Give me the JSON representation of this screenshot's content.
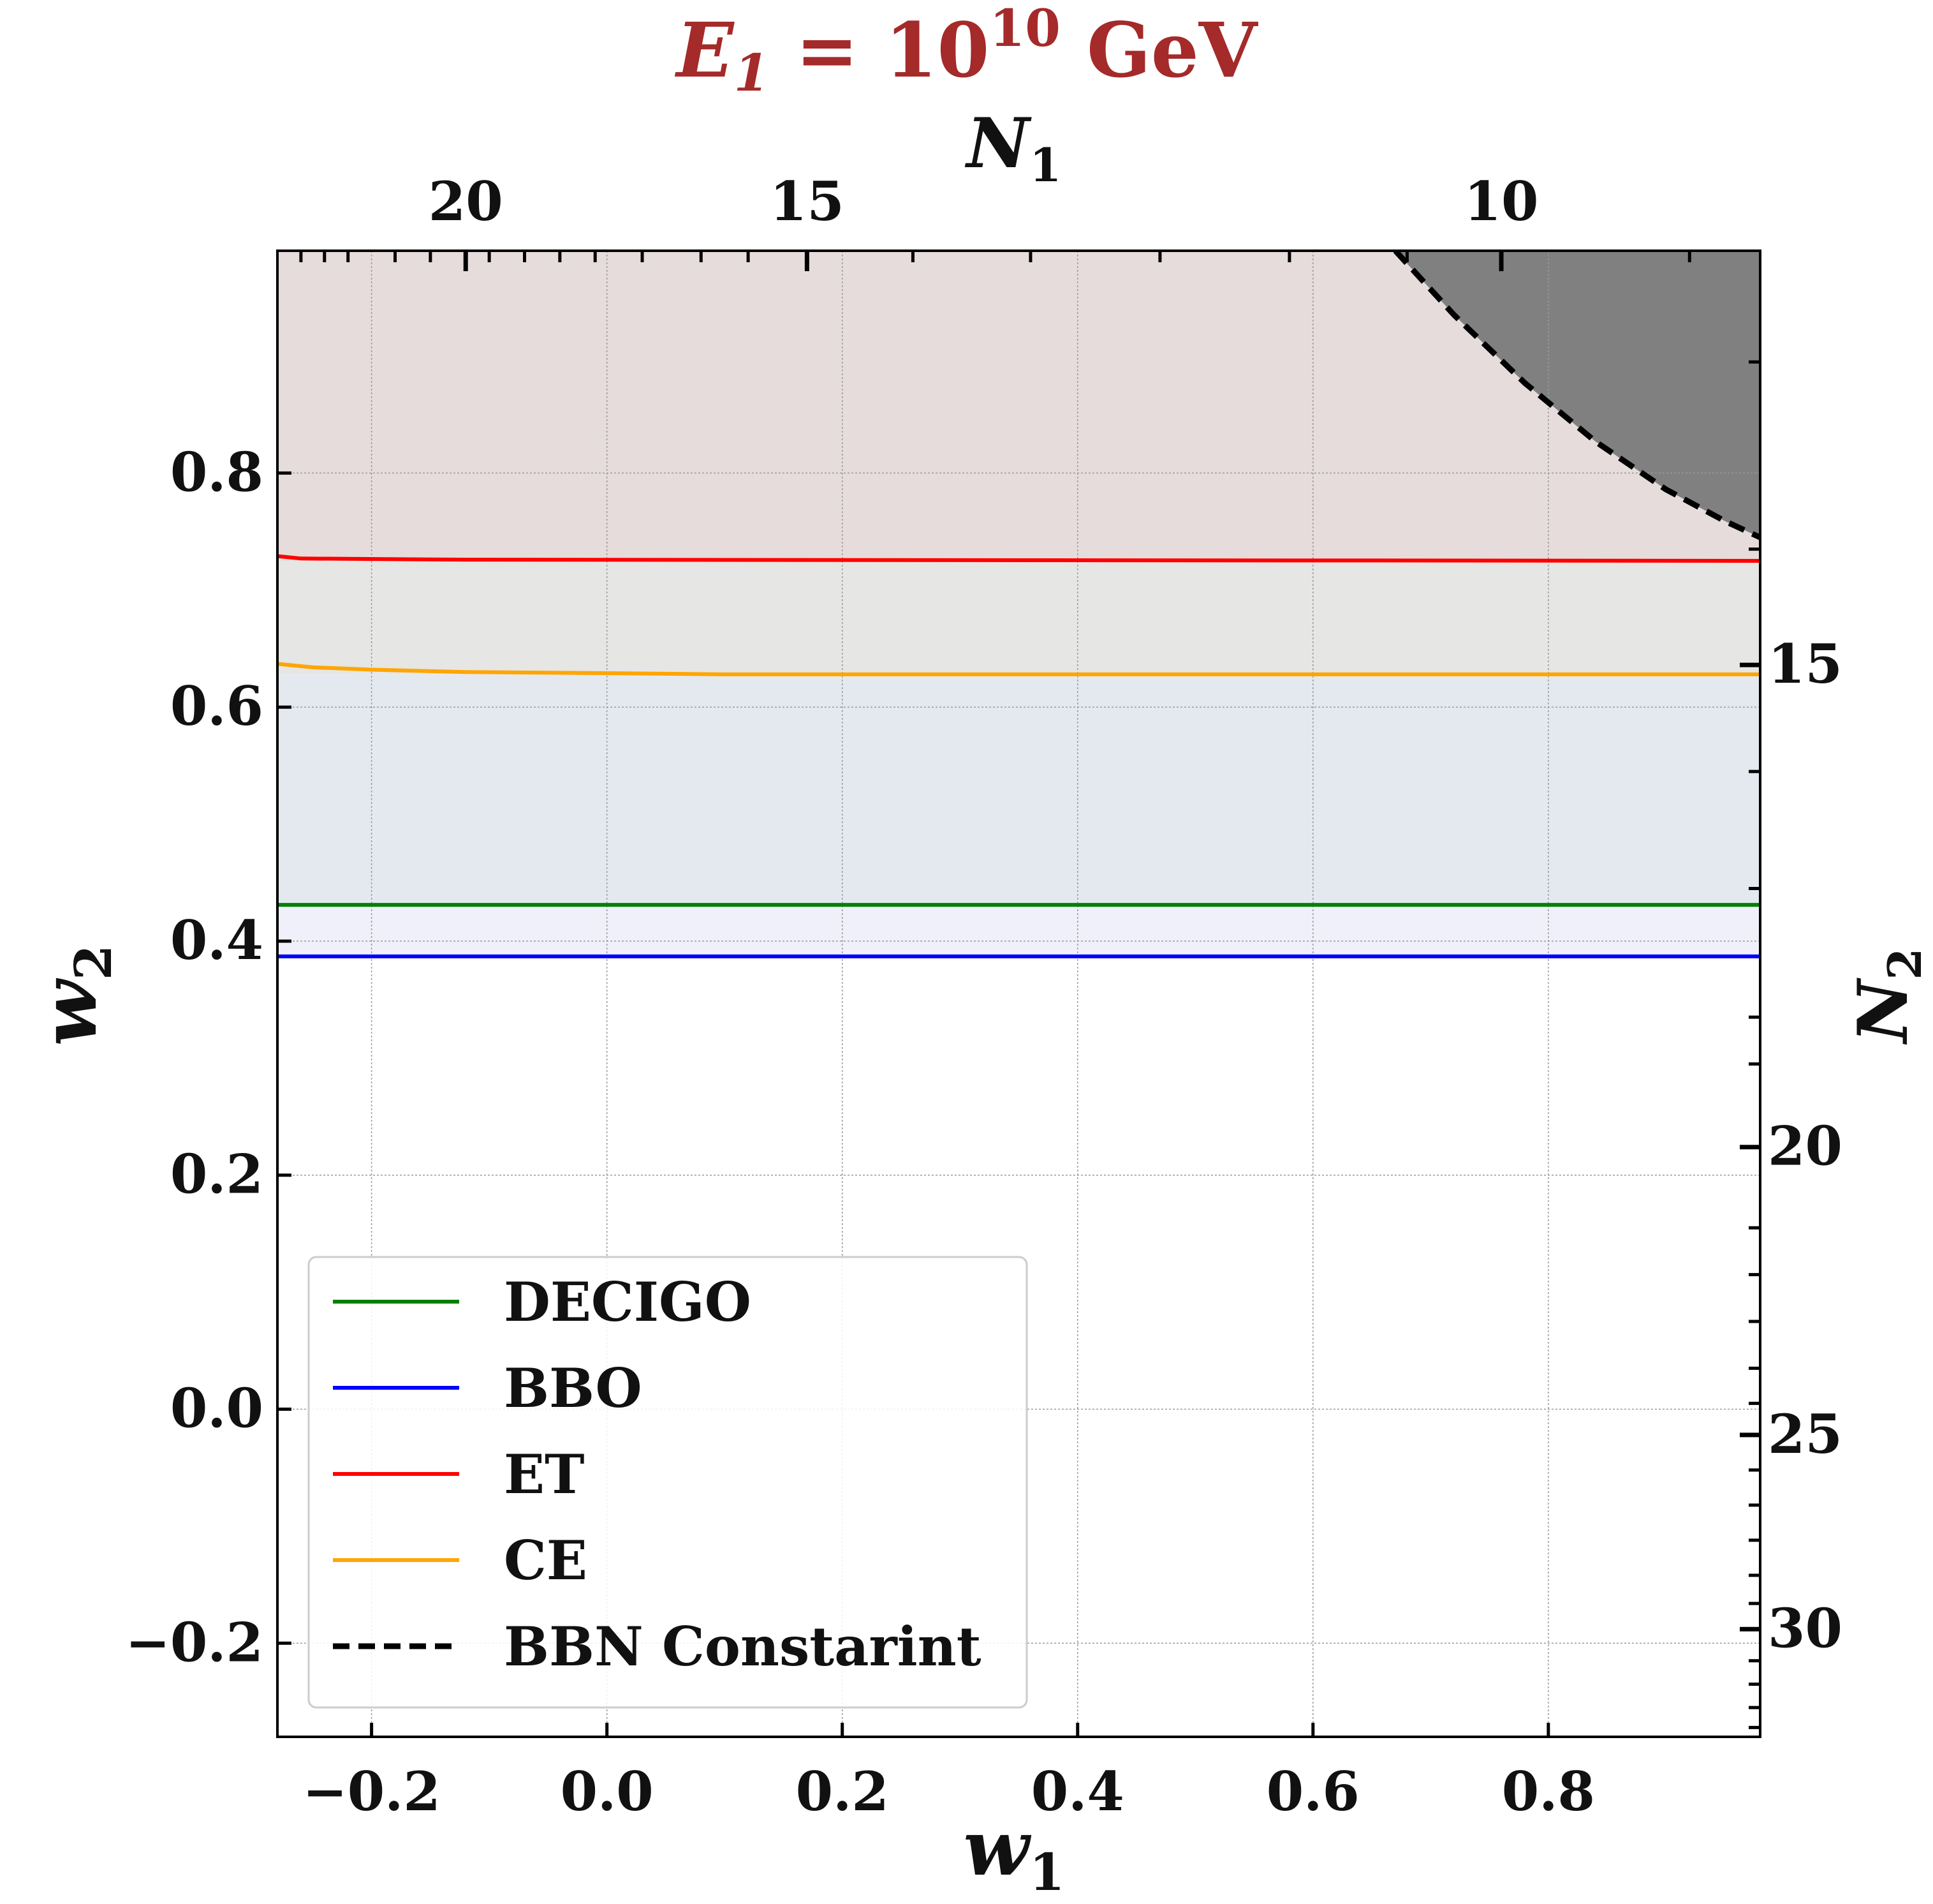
{
  "chart_data": {
    "type": "line",
    "title": {
      "main": "E",
      "sub": "1",
      "mid": " = 10",
      "sup": "10",
      "tail": " GeV"
    },
    "title_color": "#a52a2a",
    "xlabel": {
      "main": "w",
      "sub": "1"
    },
    "ylabel": {
      "main": "w",
      "sub": "2"
    },
    "top_label": {
      "main": "N",
      "sub": "1"
    },
    "right_label": {
      "main": "N",
      "sub": "2"
    },
    "xlim": [
      -0.28,
      0.98
    ],
    "ylim": [
      -0.28,
      0.99
    ],
    "x_ticks": [
      -0.2,
      0.0,
      0.2,
      0.4,
      0.6,
      0.8
    ],
    "x_tick_labels": [
      "−0.2",
      "0.0",
      "0.2",
      "0.4",
      "0.6",
      "0.8"
    ],
    "y_ticks": [
      -0.2,
      0.0,
      0.2,
      0.4,
      0.6,
      0.8
    ],
    "y_tick_labels": [
      "−0.2",
      "0.0",
      "0.2",
      "0.4",
      "0.6",
      "0.8"
    ],
    "top_ticks": [
      {
        "w1": -0.12,
        "label": "20"
      },
      {
        "w1": 0.17,
        "label": "15"
      },
      {
        "w1": 0.76,
        "label": "10"
      }
    ],
    "top_minor_w1": [
      -0.26,
      -0.24,
      -0.22,
      -0.18,
      -0.15,
      -0.1,
      -0.07,
      -0.04,
      -0.01,
      0.03,
      0.08,
      0.12,
      0.26,
      0.36,
      0.47,
      0.58,
      0.68,
      0.92
    ],
    "right_ticks": [
      {
        "w2": 0.636,
        "label": "15"
      },
      {
        "w2": 0.224,
        "label": "20"
      },
      {
        "w2": -0.022,
        "label": "25"
      },
      {
        "w2": -0.188,
        "label": "30"
      }
    ],
    "right_minor_w2": [
      0.895,
      0.735,
      0.545,
      0.445,
      0.335,
      0.295,
      0.155,
      0.115,
      0.075,
      0.035,
      0.005,
      -0.052,
      -0.082,
      -0.112,
      -0.142,
      -0.166,
      -0.215,
      -0.235,
      -0.255,
      -0.272
    ],
    "grid": true,
    "series": [
      {
        "name": "DECIGO",
        "color": "#008000",
        "style": "solid",
        "x": [
          -0.28,
          0.98
        ],
        "y": [
          0.431,
          0.431
        ]
      },
      {
        "name": "BBO",
        "color": "#0000ff",
        "style": "solid",
        "x": [
          -0.28,
          0.98
        ],
        "y": [
          0.387,
          0.387
        ]
      },
      {
        "name": "ET",
        "color": "#ff0000",
        "style": "solid",
        "x": [
          -0.28,
          -0.26,
          -0.12,
          0.98
        ],
        "y": [
          0.729,
          0.727,
          0.726,
          0.725
        ]
      },
      {
        "name": "CE",
        "color": "#ffa500",
        "style": "solid",
        "x": [
          -0.28,
          -0.25,
          -0.2,
          -0.12,
          0.0,
          0.1,
          0.98
        ],
        "y": [
          0.637,
          0.634,
          0.632,
          0.63,
          0.629,
          0.628,
          0.628
        ]
      },
      {
        "name": "BBN Constarint",
        "color": "#000000",
        "style": "dashed",
        "x": [
          0.67,
          0.72,
          0.78,
          0.84,
          0.9,
          0.95,
          0.98
        ],
        "y": [
          0.99,
          0.935,
          0.877,
          0.827,
          0.786,
          0.759,
          0.745
        ]
      }
    ],
    "regions": [
      {
        "name": "ET-region",
        "color": "#e6dcdb",
        "from": 0.725,
        "to": 0.99
      },
      {
        "name": "CE-region",
        "color": "#e6e6e4",
        "from": 0.628,
        "to": 0.725
      },
      {
        "name": "DECIGO-region",
        "color": "#e4e9f0",
        "from": 0.431,
        "to": 0.628
      },
      {
        "name": "BBO-region",
        "color": "#eff0f9",
        "from": 0.387,
        "to": 0.431
      }
    ],
    "excluded_region": {
      "name": "BBN-excluded",
      "color": "#808080"
    },
    "legend": {
      "position": "lower-left",
      "entries": [
        "DECIGO",
        "BBO",
        "ET",
        "CE",
        "BBN Constarint"
      ]
    }
  }
}
